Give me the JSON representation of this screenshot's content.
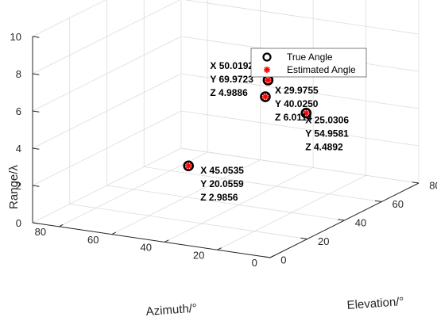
{
  "chart_data": {
    "type": "scatter3d",
    "xlabel": "Azimuth/°",
    "ylabel": "Elevation/°",
    "zlabel": "Range/λ",
    "xlim": [
      0,
      90
    ],
    "ylim": [
      0,
      80
    ],
    "zlim": [
      0,
      10
    ],
    "x_ticks": [
      "0",
      "20",
      "40",
      "60",
      "80"
    ],
    "y_ticks": [
      "0",
      "20",
      "40",
      "60",
      "80"
    ],
    "z_ticks": [
      "0",
      "2",
      "4",
      "6",
      "8",
      "10"
    ],
    "grid": true,
    "legend_position": "top-right",
    "series": [
      {
        "name": "True Angle",
        "marker": "open-circle",
        "color": "#000000",
        "points": [
          {
            "x": 50.0192,
            "y": 69.9723,
            "z": 4.9886
          },
          {
            "x": 25.0306,
            "y": 54.9581,
            "z": 4.4892
          },
          {
            "x": 29.9755,
            "y": 40.025,
            "z": 6.0114
          },
          {
            "x": 45.0535,
            "y": 20.0559,
            "z": 2.9856
          }
        ]
      },
      {
        "name": "Estimated Angle",
        "marker": "asterisk",
        "color": "#ff0000",
        "points": [
          {
            "x": 50.0192,
            "y": 69.9723,
            "z": 4.9886
          },
          {
            "x": 25.0306,
            "y": 54.9581,
            "z": 4.4892
          },
          {
            "x": 29.9755,
            "y": 40.025,
            "z": 6.0114
          },
          {
            "x": 45.0535,
            "y": 20.0559,
            "z": 2.9856
          }
        ]
      }
    ],
    "datatips": [
      {
        "x": "X 50.0192",
        "y": "Y 69.9723",
        "z": "Z 4.9886"
      },
      {
        "x": "X 25.0306",
        "y": "Y 54.9581",
        "z": "Z 4.4892"
      },
      {
        "x": "X 29.9755",
        "y": "Y 40.0250",
        "z": "Z 6.0114"
      },
      {
        "x": "X 45.0535",
        "y": "Y 20.0559",
        "z": "Z 2.9856"
      }
    ]
  }
}
